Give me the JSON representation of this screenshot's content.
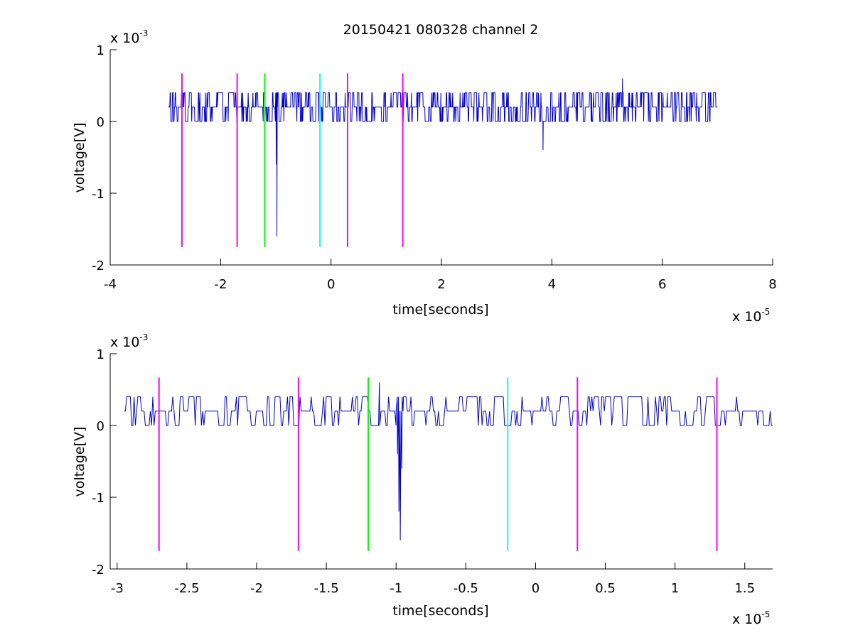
{
  "chart_data": [
    {
      "type": "line",
      "title": "20150421 080328 channel 2",
      "xlabel": "time[seconds]",
      "ylabel": "voltage[V]",
      "x_multiplier": {
        "base": "x 10",
        "exp": "-5"
      },
      "y_multiplier": {
        "base": "x 10",
        "exp": "-3"
      },
      "xlim": [
        -4,
        8
      ],
      "ylim": [
        -2,
        1
      ],
      "x_ticks": [
        "-4",
        "-2",
        "0",
        "2",
        "4",
        "6",
        "8"
      ],
      "x_tick_values": [
        -4,
        -2,
        0,
        2,
        4,
        6,
        8
      ],
      "y_ticks": [
        "-2",
        "-1",
        "0",
        "1"
      ],
      "y_tick_values": [
        -2,
        -1,
        0,
        1
      ],
      "grid": false,
      "series": [
        {
          "color": "#0000cc",
          "x_range": [
            -2.95,
            7.0
          ],
          "baseline": 0.2,
          "levels": [
            0.0,
            0.2,
            0.4
          ],
          "points": [
            [
              -2.95,
              0.2
            ],
            [
              -1.0,
              0.2
            ],
            [
              -0.99,
              -0.6
            ],
            [
              -0.98,
              -1.6
            ],
            [
              -0.97,
              0.2
            ],
            [
              3.82,
              0.0
            ],
            [
              3.84,
              -0.4
            ],
            [
              3.86,
              0.0
            ],
            [
              5.28,
              0.6
            ],
            [
              7.0,
              0.2
            ],
            [
              7.0,
              0.0
            ]
          ]
        }
      ],
      "markers": [
        {
          "x": -2.7,
          "color": "#ff00ff",
          "y_range": [
            -1.75,
            0.67
          ]
        },
        {
          "x": -1.7,
          "color": "#ff00ff",
          "y_range": [
            -1.75,
            0.67
          ]
        },
        {
          "x": -1.2,
          "color": "#00ff00",
          "y_range": [
            -1.75,
            0.67
          ]
        },
        {
          "x": -0.2,
          "color": "#00ffff",
          "y_range": [
            -1.75,
            0.67
          ]
        },
        {
          "x": 0.3,
          "color": "#ff00ff",
          "y_range": [
            -1.75,
            0.67
          ]
        },
        {
          "x": 1.3,
          "color": "#ff00ff",
          "y_range": [
            -1.75,
            0.67
          ]
        }
      ]
    },
    {
      "type": "line",
      "title": "",
      "xlabel": "time[seconds]",
      "ylabel": "voltage[V]",
      "x_multiplier": {
        "base": "x 10",
        "exp": "-5"
      },
      "y_multiplier": {
        "base": "x 10",
        "exp": "-3"
      },
      "xlim": [
        -3.05,
        1.7
      ],
      "ylim": [
        -2,
        1
      ],
      "x_ticks": [
        "-3",
        "-2.5",
        "-2",
        "-1.5",
        "-1",
        "-0.5",
        "0",
        "0.5",
        "1",
        "1.5"
      ],
      "x_tick_values": [
        -3,
        -2.5,
        -2,
        -1.5,
        -1,
        -0.5,
        0,
        0.5,
        1,
        1.5
      ],
      "y_ticks": [
        "-2",
        "-1",
        "0",
        "1"
      ],
      "y_tick_values": [
        -2,
        -1,
        0,
        1
      ],
      "grid": false,
      "series": [
        {
          "color": "#0000cc",
          "x_range": [
            -2.95,
            1.7
          ],
          "baseline": 0.2,
          "levels": [
            0.0,
            0.2,
            0.4
          ],
          "points": [
            [
              -2.95,
              0.2
            ],
            [
              -1.0,
              0.2
            ],
            [
              -0.99,
              -0.4
            ],
            [
              -0.98,
              -1.2
            ],
            [
              -0.97,
              -1.6
            ],
            [
              -0.96,
              -0.6
            ],
            [
              -0.95,
              0.2
            ],
            [
              -1.12,
              0.6
            ],
            [
              1.7,
              0.2
            ]
          ]
        }
      ],
      "markers": [
        {
          "x": -2.7,
          "color": "#ff00ff",
          "y_range": [
            -1.75,
            0.67
          ]
        },
        {
          "x": -1.7,
          "color": "#ff00ff",
          "y_range": [
            -1.75,
            0.67
          ]
        },
        {
          "x": -1.2,
          "color": "#00ff00",
          "y_range": [
            -1.75,
            0.67
          ]
        },
        {
          "x": -0.2,
          "color": "#00ffff",
          "y_range": [
            -1.75,
            0.67
          ]
        },
        {
          "x": 0.3,
          "color": "#ff00ff",
          "y_range": [
            -1.75,
            0.67
          ]
        },
        {
          "x": 1.3,
          "color": "#ff00ff",
          "y_range": [
            -1.75,
            0.67
          ]
        }
      ]
    }
  ]
}
